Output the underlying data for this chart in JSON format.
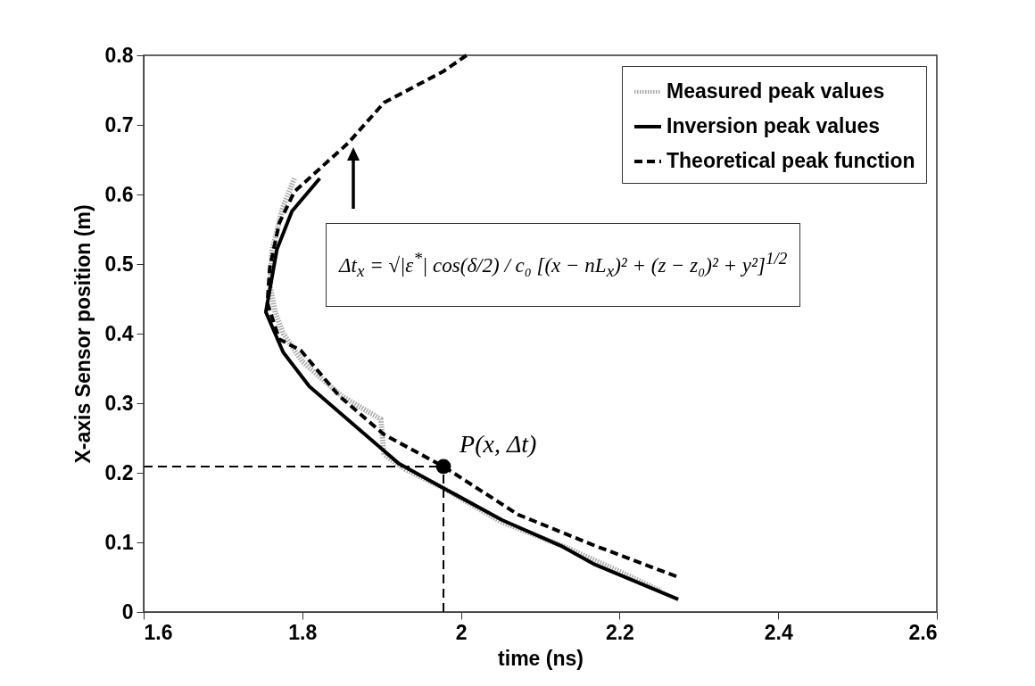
{
  "chart_data": {
    "type": "line",
    "xlabel": "time (ns)",
    "ylabel": "X-axis Sensor position (m)",
    "xlim": [
      1.6,
      2.6
    ],
    "xticks": [
      1.6,
      1.8,
      2,
      2.2,
      2.4,
      2.6
    ],
    "ylim": [
      0,
      0.8
    ],
    "yticks": [
      0,
      0.1,
      0.2,
      0.3,
      0.4,
      0.5,
      0.6,
      0.7,
      0.8
    ],
    "grid": false,
    "legend": "top right",
    "series": [
      {
        "name": "Measured peak values",
        "color": "#a8a8a8",
        "line_style": "dotted",
        "x": [
          1.79,
          1.775,
          1.762,
          1.759,
          1.766,
          1.776,
          1.8,
          1.85,
          1.899,
          1.903,
          1.93,
          1.978,
          2.05,
          2.13,
          2.2,
          2.252
        ],
        "values": [
          0.623,
          0.58,
          0.52,
          0.47,
          0.43,
          0.4,
          0.36,
          0.31,
          0.277,
          0.226,
          0.205,
          0.178,
          0.13,
          0.094,
          0.058,
          0.03
        ]
      },
      {
        "name": "Inversion peak values",
        "color": "#000000",
        "line_style": "solid",
        "x": [
          1.822,
          1.787,
          1.768,
          1.754,
          1.776,
          1.809,
          1.866,
          1.922,
          1.978,
          2.052,
          2.128,
          2.169,
          2.274
        ],
        "values": [
          0.623,
          0.576,
          0.521,
          0.431,
          0.373,
          0.324,
          0.268,
          0.213,
          0.178,
          0.132,
          0.094,
          0.068,
          0.018
        ]
      },
      {
        "name": "Theoretical peak function",
        "color": "#000000",
        "line_style": "dashed",
        "x": [
          2.007,
          1.978,
          1.903,
          1.858,
          1.821,
          1.79,
          1.771,
          1.759,
          1.756,
          1.771,
          1.798,
          1.846,
          1.903,
          1.978,
          2.072,
          2.165,
          2.274
        ],
        "values": [
          0.8,
          0.777,
          0.732,
          0.674,
          0.636,
          0.604,
          0.559,
          0.495,
          0.444,
          0.392,
          0.376,
          0.311,
          0.255,
          0.209,
          0.14,
          0.097,
          0.05
        ]
      }
    ],
    "annotations": [
      {
        "text": "P(x, Δt)",
        "x": 1.978,
        "y": 0.209
      },
      "Δt$_{x}$ = √|ε$^{*}$| cos(δ/2) / c₀ [(x − nL$_{x}$)² + (z − z₀)² + y²]$^{1/2}$"
    ]
  }
}
